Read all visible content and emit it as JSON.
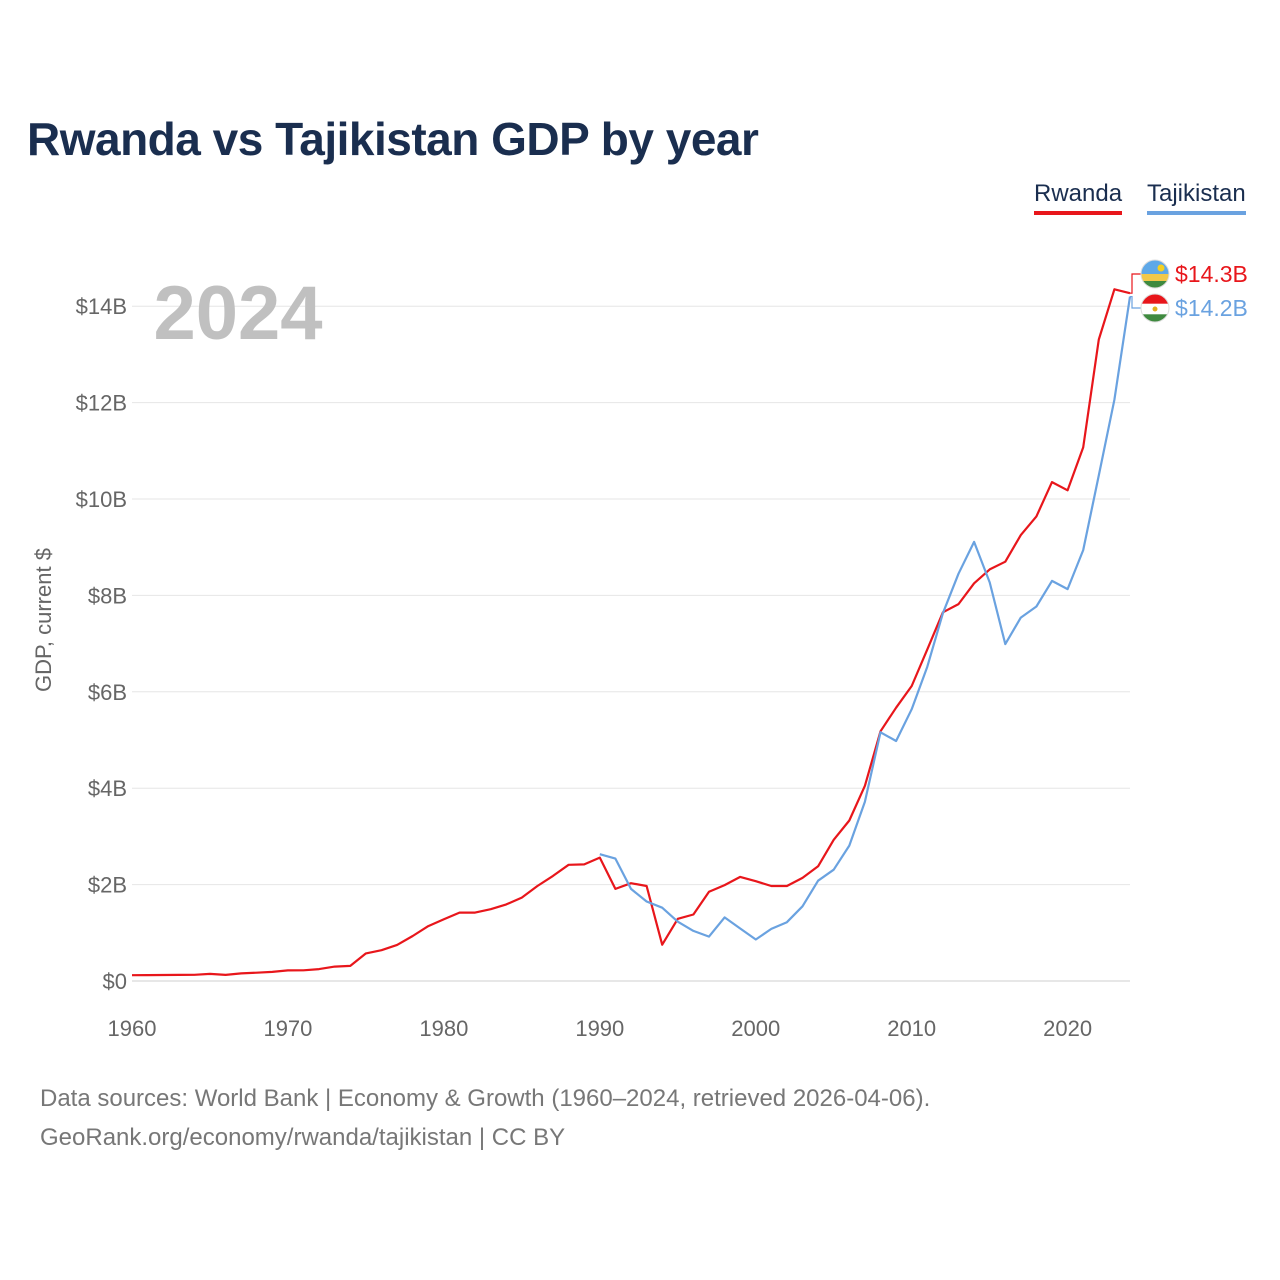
{
  "chart_data": {
    "type": "line",
    "title": "Rwanda vs Tajikistan GDP by year",
    "year_label": "2024",
    "ylabel": "GDP, current $",
    "xlabel": "",
    "xlim": [
      1960,
      2024
    ],
    "ylim": [
      0,
      15000000000
    ],
    "x_ticks": [
      "1960",
      "1970",
      "1980",
      "1990",
      "2000",
      "2010",
      "2020"
    ],
    "x_tick_values": [
      1960,
      1970,
      1980,
      1990,
      2000,
      2010,
      2020
    ],
    "y_ticks": [
      "$0",
      "$2B",
      "$4B",
      "$6B",
      "$8B",
      "$10B",
      "$12B",
      "$14B"
    ],
    "y_tick_values": [
      0,
      2000000000,
      4000000000,
      6000000000,
      8000000000,
      10000000000,
      12000000000,
      14000000000
    ],
    "grid": true,
    "legend_position": "top-right",
    "series": [
      {
        "name": "Rwanda",
        "color": "#e8161b",
        "end_label": "$14.3B",
        "x": [
          1960,
          1961,
          1962,
          1963,
          1964,
          1965,
          1966,
          1967,
          1968,
          1969,
          1970,
          1971,
          1972,
          1973,
          1974,
          1975,
          1976,
          1977,
          1978,
          1979,
          1980,
          1981,
          1982,
          1983,
          1984,
          1985,
          1986,
          1987,
          1988,
          1989,
          1990,
          1991,
          1992,
          1993,
          1994,
          1995,
          1996,
          1997,
          1998,
          1999,
          2000,
          2001,
          2002,
          2003,
          2004,
          2005,
          2006,
          2007,
          2008,
          2009,
          2010,
          2011,
          2012,
          2013,
          2014,
          2015,
          2016,
          2017,
          2018,
          2019,
          2020,
          2021,
          2022,
          2023,
          2024
        ],
        "values": [
          120000000,
          122000000,
          125000000,
          126000000,
          129000000,
          147000000,
          127000000,
          158000000,
          172000000,
          188000000,
          220000000,
          222000000,
          246000000,
          299000000,
          313000000,
          572000000,
          640000000,
          750000000,
          934000000,
          1140000000,
          1280000000,
          1420000000,
          1420000000,
          1490000000,
          1590000000,
          1730000000,
          1970000000,
          2180000000,
          2410000000,
          2420000000,
          2560000000,
          1910000000,
          2030000000,
          1970000000,
          754000000,
          1290000000,
          1380000000,
          1850000000,
          1990000000,
          2160000000,
          2070000000,
          1970000000,
          1970000000,
          2140000000,
          2380000000,
          2930000000,
          3330000000,
          4050000000,
          5180000000,
          5670000000,
          6120000000,
          6880000000,
          7650000000,
          7820000000,
          8250000000,
          8540000000,
          8700000000,
          9250000000,
          9640000000,
          10350000000,
          10180000000,
          11070000000,
          13310000000,
          14350000000,
          14270000000
        ]
      },
      {
        "name": "Tajikistan",
        "color": "#6aa2e0",
        "end_label": "$14.2B",
        "x": [
          1990,
          1991,
          1992,
          1993,
          1994,
          1995,
          1996,
          1997,
          1998,
          1999,
          2000,
          2001,
          2002,
          2003,
          2004,
          2005,
          2006,
          2007,
          2008,
          2009,
          2010,
          2011,
          2012,
          2013,
          2014,
          2015,
          2016,
          2017,
          2018,
          2019,
          2020,
          2021,
          2022,
          2023,
          2024
        ],
        "values": [
          2630000000,
          2540000000,
          1910000000,
          1650000000,
          1520000000,
          1230000000,
          1040000000,
          921000000,
          1320000000,
          1090000000,
          861000000,
          1080000000,
          1220000000,
          1550000000,
          2080000000,
          2310000000,
          2810000000,
          3720000000,
          5160000000,
          4980000000,
          5640000000,
          6520000000,
          7630000000,
          8450000000,
          9110000000,
          8270000000,
          6990000000,
          7540000000,
          7770000000,
          8300000000,
          8130000000,
          8940000000,
          10490000000,
          12060000000,
          14200000000
        ]
      }
    ]
  },
  "footer": {
    "source_line1": "Data sources: World Bank | Economy & Growth (1960–2024, retrieved 2026-04-06).",
    "source_line2": "GeoRank.org/economy/rwanda/tajikistan | CC BY"
  }
}
